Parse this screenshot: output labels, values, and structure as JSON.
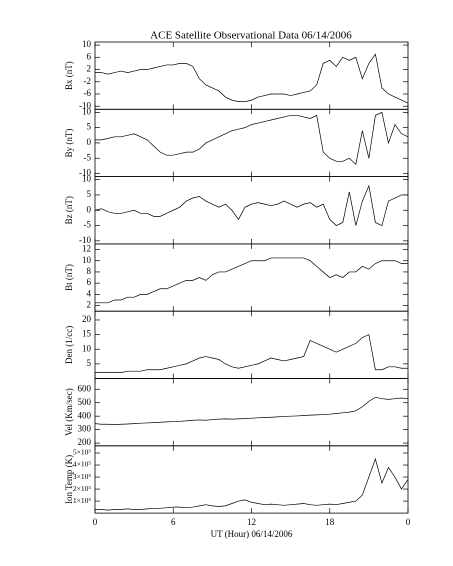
{
  "chart_data": [
    {
      "type": "line",
      "title": "ACE Satellite Observational Data  06/14/2006",
      "ylabel": "Bx (nT)",
      "ylim": [
        -11,
        11
      ],
      "yticks": [
        -10,
        -6,
        -2,
        2,
        6,
        10
      ],
      "x": [
        0,
        0.5,
        1,
        1.5,
        2,
        2.5,
        3,
        3.5,
        4,
        4.5,
        5,
        5.5,
        6,
        6.5,
        7,
        7.5,
        8,
        8.5,
        9,
        9.5,
        10,
        10.5,
        11,
        11.5,
        12,
        12.5,
        13,
        13.5,
        14,
        14.5,
        15,
        15.5,
        16,
        16.5,
        17,
        17.5,
        18,
        18.5,
        19,
        19.5,
        20,
        20.5,
        21,
        21.5,
        22,
        22.5,
        23,
        23.5,
        24
      ],
      "values": [
        1,
        1,
        0.5,
        1,
        1.5,
        1,
        1.5,
        2,
        2,
        2.5,
        3,
        3.5,
        3.5,
        4,
        4,
        3,
        -1,
        -3,
        -4,
        -5,
        -7,
        -8,
        -8.5,
        -8.5,
        -8,
        -7,
        -6.5,
        -6,
        -6,
        -6,
        -6.5,
        -6,
        -5.5,
        -5,
        -3,
        4,
        5,
        3,
        6,
        5,
        6,
        -1,
        4,
        7,
        -4,
        -6,
        -7,
        -8,
        -9
      ]
    },
    {
      "type": "line",
      "ylabel": "By (nT)",
      "ylim": [
        -11,
        11
      ],
      "yticks": [
        -10,
        -5,
        0,
        5,
        10
      ],
      "x": [
        0,
        0.5,
        1,
        1.5,
        2,
        2.5,
        3,
        3.5,
        4,
        4.5,
        5,
        5.5,
        6,
        6.5,
        7,
        7.5,
        8,
        8.5,
        9,
        9.5,
        10,
        10.5,
        11,
        11.5,
        12,
        12.5,
        13,
        13.5,
        14,
        14.5,
        15,
        15.5,
        16,
        16.5,
        17,
        17.5,
        18,
        18.5,
        19,
        19.5,
        20,
        20.5,
        21,
        21.5,
        22,
        22.5,
        23,
        23.5,
        24
      ],
      "values": [
        1,
        1,
        1.5,
        2,
        2,
        2.5,
        3,
        2,
        1,
        -1,
        -3,
        -4,
        -4,
        -3.5,
        -3,
        -3,
        -2,
        0,
        1,
        2,
        3,
        4,
        4.5,
        5,
        6,
        6.5,
        7,
        7.5,
        8,
        8.5,
        9,
        9,
        8.5,
        8,
        9,
        -3,
        -5,
        -6,
        -6,
        -5,
        -7,
        4,
        -5,
        9,
        10,
        0,
        6,
        3,
        2
      ]
    },
    {
      "type": "line",
      "ylabel": "Bz (nT)",
      "ylim": [
        -11,
        11
      ],
      "yticks": [
        -10,
        -5,
        0,
        5,
        10
      ],
      "x": [
        0,
        0.5,
        1,
        1.5,
        2,
        2.5,
        3,
        3.5,
        4,
        4.5,
        5,
        5.5,
        6,
        6.5,
        7,
        7.5,
        8,
        8.5,
        9,
        9.5,
        10,
        10.5,
        11,
        11.5,
        12,
        12.5,
        13,
        13.5,
        14,
        14.5,
        15,
        15.5,
        16,
        16.5,
        17,
        17.5,
        18,
        18.5,
        19,
        19.5,
        20,
        20.5,
        21,
        21.5,
        22,
        22.5,
        23,
        23.5,
        24
      ],
      "values": [
        0,
        0.5,
        -0.5,
        -1,
        -1,
        -0.5,
        0,
        -1,
        -1,
        -2,
        -2,
        -1,
        0,
        1,
        3,
        4,
        4.5,
        3,
        2,
        1,
        2,
        0,
        -3,
        1,
        2,
        2.5,
        2,
        1.5,
        2,
        3,
        2,
        1,
        2,
        2.5,
        1,
        2,
        -3,
        -5,
        -4,
        6,
        -5,
        3,
        8,
        -4,
        -5,
        3,
        4,
        5,
        5
      ]
    },
    {
      "type": "line",
      "ylabel": "Bt (nT)",
      "ylim": [
        1,
        13
      ],
      "yticks": [
        2,
        4,
        6,
        8,
        10,
        12
      ],
      "x": [
        0,
        0.5,
        1,
        1.5,
        2,
        2.5,
        3,
        3.5,
        4,
        4.5,
        5,
        5.5,
        6,
        6.5,
        7,
        7.5,
        8,
        8.5,
        9,
        9.5,
        10,
        10.5,
        11,
        11.5,
        12,
        12.5,
        13,
        13.5,
        14,
        14.5,
        15,
        15.5,
        16,
        16.5,
        17,
        17.5,
        18,
        18.5,
        19,
        19.5,
        20,
        20.5,
        21,
        21.5,
        22,
        22.5,
        23,
        23.5,
        24
      ],
      "values": [
        2.5,
        2.5,
        2.5,
        3,
        3,
        3.5,
        3.5,
        4,
        4,
        4.5,
        5,
        5,
        5.5,
        6,
        6.5,
        6.5,
        7,
        6.5,
        7.5,
        8,
        8,
        8.5,
        9,
        9.5,
        10,
        10,
        10,
        10.5,
        10.5,
        10.5,
        10.5,
        10.5,
        10.5,
        10,
        9,
        8,
        7,
        7.5,
        7,
        8,
        8,
        9,
        8.5,
        9.5,
        10,
        10,
        10,
        9.5,
        9.5
      ]
    },
    {
      "type": "line",
      "ylabel": "Den (1/cc)",
      "ylim": [
        0,
        23
      ],
      "yticks": [
        5,
        10,
        15,
        20
      ],
      "x": [
        0,
        0.5,
        1,
        1.5,
        2,
        2.5,
        3,
        3.5,
        4,
        4.5,
        5,
        5.5,
        6,
        6.5,
        7,
        7.5,
        8,
        8.5,
        9,
        9.5,
        10,
        10.5,
        11,
        11.5,
        12,
        12.5,
        13,
        13.5,
        14,
        14.5,
        15,
        15.5,
        16,
        16.5,
        17,
        17.5,
        18,
        18.5,
        19,
        19.5,
        20,
        20.5,
        21,
        21.5,
        22,
        22.5,
        23,
        23.5,
        24
      ],
      "values": [
        2,
        2,
        2,
        2,
        2,
        2.5,
        2.5,
        2.5,
        3,
        3,
        3,
        3.5,
        4,
        4.5,
        5,
        6,
        7,
        7.5,
        7,
        6.5,
        5,
        4,
        3.5,
        4,
        4.5,
        5,
        6,
        7,
        6.5,
        6,
        6.5,
        7,
        7.5,
        13,
        12,
        11,
        10,
        9,
        10,
        11,
        12,
        14,
        15,
        3,
        3,
        4,
        4,
        3.5,
        3.5
      ]
    },
    {
      "type": "line",
      "ylabel": "Vel (Km/sec)",
      "ylim": [
        180,
        680
      ],
      "yticks": [
        200,
        300,
        400,
        500,
        600
      ],
      "x": [
        0,
        0.5,
        1,
        1.5,
        2,
        2.5,
        3,
        3.5,
        4,
        4.5,
        5,
        5.5,
        6,
        6.5,
        7,
        7.5,
        8,
        8.5,
        9,
        9.5,
        10,
        10.5,
        11,
        11.5,
        12,
        12.5,
        13,
        13.5,
        14,
        14.5,
        15,
        15.5,
        16,
        16.5,
        17,
        17.5,
        18,
        18.5,
        19,
        19.5,
        20,
        20.5,
        21,
        21.5,
        22,
        22.5,
        23,
        23.5,
        24
      ],
      "values": [
        345,
        340,
        340,
        338,
        340,
        342,
        345,
        348,
        350,
        352,
        355,
        358,
        360,
        362,
        365,
        370,
        372,
        370,
        375,
        378,
        380,
        378,
        380,
        382,
        385,
        388,
        390,
        392,
        395,
        398,
        400,
        402,
        405,
        408,
        410,
        412,
        415,
        420,
        425,
        430,
        440,
        470,
        510,
        540,
        530,
        525,
        530,
        535,
        530
      ]
    },
    {
      "type": "line",
      "ylabel": "Ion Temp (K)",
      "ylim": [
        0,
        560000
      ],
      "yticks": [
        {
          "value": 100000,
          "label": "1×10⁵"
        },
        {
          "value": 200000,
          "label": "2×10⁵"
        },
        {
          "value": 300000,
          "label": "3×10⁵"
        },
        {
          "value": 400000,
          "label": "4×10⁵"
        },
        {
          "value": 500000,
          "label": "5×10⁵"
        }
      ],
      "xlabel": "UT (Hour)  06/14/2006",
      "xlim": [
        0,
        24
      ],
      "xticks": [
        0,
        6,
        12,
        18,
        {
          "value": 24,
          "label": "0"
        }
      ],
      "x": [
        0,
        0.5,
        1,
        1.5,
        2,
        2.5,
        3,
        3.5,
        4,
        4.5,
        5,
        5.5,
        6,
        6.5,
        7,
        7.5,
        8,
        8.5,
        9,
        9.5,
        10,
        10.5,
        11,
        11.5,
        12,
        12.5,
        13,
        13.5,
        14,
        14.5,
        15,
        15.5,
        16,
        16.5,
        17,
        17.5,
        18,
        18.5,
        19,
        19.5,
        20,
        20.5,
        21,
        21.5,
        22,
        22.5,
        23,
        23.5,
        24
      ],
      "values": [
        30000,
        30000,
        25000,
        30000,
        30000,
        35000,
        30000,
        30000,
        35000,
        40000,
        40000,
        45000,
        50000,
        50000,
        45000,
        50000,
        60000,
        70000,
        60000,
        55000,
        60000,
        80000,
        100000,
        110000,
        90000,
        80000,
        70000,
        75000,
        70000,
        65000,
        70000,
        75000,
        80000,
        70000,
        65000,
        70000,
        75000,
        70000,
        80000,
        90000,
        100000,
        150000,
        300000,
        450000,
        250000,
        380000,
        300000,
        200000,
        280000
      ]
    }
  ]
}
